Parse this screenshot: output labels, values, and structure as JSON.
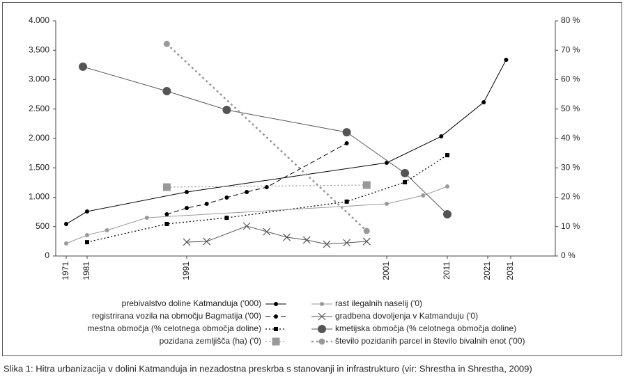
{
  "chart_data": {
    "type": "line",
    "caption": "Slika 1: Hitra urbanizacija v dolini Katmanduja in nezadostna preskrba s stanovanji in infrastrukturo (vir: Shrestha in Shrestha, 2009)",
    "xlim": [
      1966,
      2050
    ],
    "xticks": [
      1971,
      1981,
      1991,
      2001,
      2011,
      2021,
      2031
    ],
    "ylim": [
      0,
      4000
    ],
    "yticks": [
      {
        "value": 0,
        "label": "0"
      },
      {
        "value": 500,
        "label": "500"
      },
      {
        "value": 1000,
        "label": "1.000"
      },
      {
        "value": 1500,
        "label": "1.500"
      },
      {
        "value": 2000,
        "label": "2.000"
      },
      {
        "value": 2500,
        "label": "2.500"
      },
      {
        "value": 3000,
        "label": "3.000"
      },
      {
        "value": 3500,
        "label": "3.500"
      },
      {
        "value": 4000,
        "label": "4.000"
      }
    ],
    "y2lim": [
      0,
      80
    ],
    "y2ticks": [
      {
        "value": 0,
        "label": "0 %"
      },
      {
        "value": 10,
        "label": "10 %"
      },
      {
        "value": 20,
        "label": "20 %"
      },
      {
        "value": 30,
        "label": "30 %"
      },
      {
        "value": 40,
        "label": "40 %"
      },
      {
        "value": 50,
        "label": "50 %"
      },
      {
        "value": 60,
        "label": "60 %"
      },
      {
        "value": 70,
        "label": "70 %"
      },
      {
        "value": 80,
        "label": "80 %"
      }
    ],
    "series": [
      {
        "name": "prebivalstvo doline Katmanduja ('000)",
        "color": "#000000",
        "line_style": "solid",
        "marker": "dot",
        "x": [
          1971,
          1981,
          1991,
          2001,
          2010,
          2020,
          2029
        ],
        "values": [
          544,
          757,
          1089,
          1586,
          2035,
          2615,
          3337
        ]
      },
      {
        "name": "registrirana vozila na območju Bagmatija ('00)",
        "color": "#000000",
        "line_style": "dashed",
        "marker": "dot",
        "x": [
          1989,
          1991,
          1992,
          1993,
          1994,
          1995,
          1999
        ],
        "values": [
          710,
          816,
          887,
          994,
          1089,
          1171,
          1917
        ]
      },
      {
        "name": "mestna območja (% celotnega območja doline)",
        "color": "#000000",
        "line_style": "dotted",
        "marker": "square",
        "axis": "y2",
        "x": [
          1981,
          1989,
          1993,
          1999,
          2004,
          2011
        ],
        "values": [
          4.7,
          10.9,
          13.0,
          18.5,
          25.1,
          34.3
        ]
      },
      {
        "name": "pozidana zemljišča (ha) ('0)",
        "color": "#999999",
        "line_style": "dotted",
        "marker": "bigsquare",
        "x": [
          1989,
          2000
        ],
        "values": [
          1171,
          1207
        ]
      },
      {
        "name": "rast ilegalnih naselij ('0)",
        "color": "#999999",
        "line_style": "solid",
        "marker": "dot",
        "x": [
          1971,
          1981,
          1983,
          1987,
          2001,
          2007,
          2011
        ],
        "values": [
          213,
          355,
          438,
          651,
          887,
          1029,
          1183
        ]
      },
      {
        "name": "gradbena dovoljenja v Katmanduju ('0)",
        "color": "#555555",
        "line_style": "solid",
        "marker": "x",
        "x": [
          1991,
          1992,
          1994,
          1995,
          1996,
          1997,
          1998,
          1999,
          2000
        ],
        "values": [
          237,
          248,
          509,
          414,
          319,
          272,
          201,
          225,
          248
        ]
      },
      {
        "name": "kmetijska območja (% celotnega območja doline)",
        "color": "#555555",
        "line_style": "solid",
        "marker": "circle",
        "axis": "y2",
        "x": [
          1979,
          1989,
          1993,
          1999,
          2004,
          2011
        ],
        "values": [
          64.4,
          56.1,
          49.7,
          42.1,
          28.2,
          14.2
        ]
      },
      {
        "name": "število pozidanih parcel in število bivalnih enot ('00)",
        "color": "#999999",
        "line_style": "thickdotted",
        "marker": "grayDot",
        "x": [
          1989,
          2000
        ],
        "values": [
          3608,
          426
        ]
      }
    ]
  }
}
